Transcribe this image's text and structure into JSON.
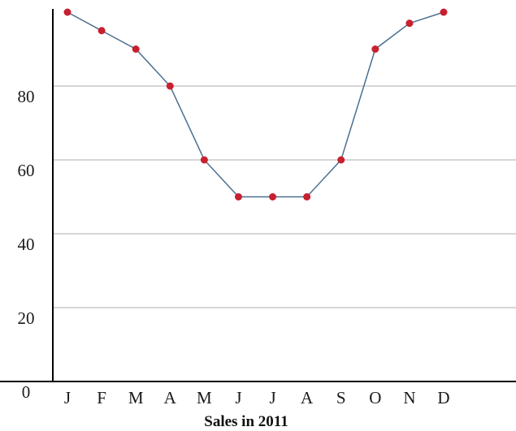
{
  "chart_data": {
    "type": "line",
    "title": "",
    "xlabel": "Sales in 2011",
    "ylabel": "",
    "categories": [
      "J",
      "F",
      "M",
      "A",
      "M",
      "J",
      "J",
      "A",
      "S",
      "O",
      "N",
      "D"
    ],
    "series": [
      {
        "values": [
          100,
          95,
          90,
          80,
          60,
          50,
          50,
          50,
          60,
          90,
          97,
          100
        ]
      }
    ],
    "yticks": [
      0,
      20,
      40,
      60,
      80
    ],
    "ylim": [
      0,
      100
    ],
    "grid": true,
    "colors": {
      "line": "#4a6f8f",
      "marker": "#c8202f",
      "grid": "#bdbdbd",
      "axis": "#000000"
    }
  }
}
